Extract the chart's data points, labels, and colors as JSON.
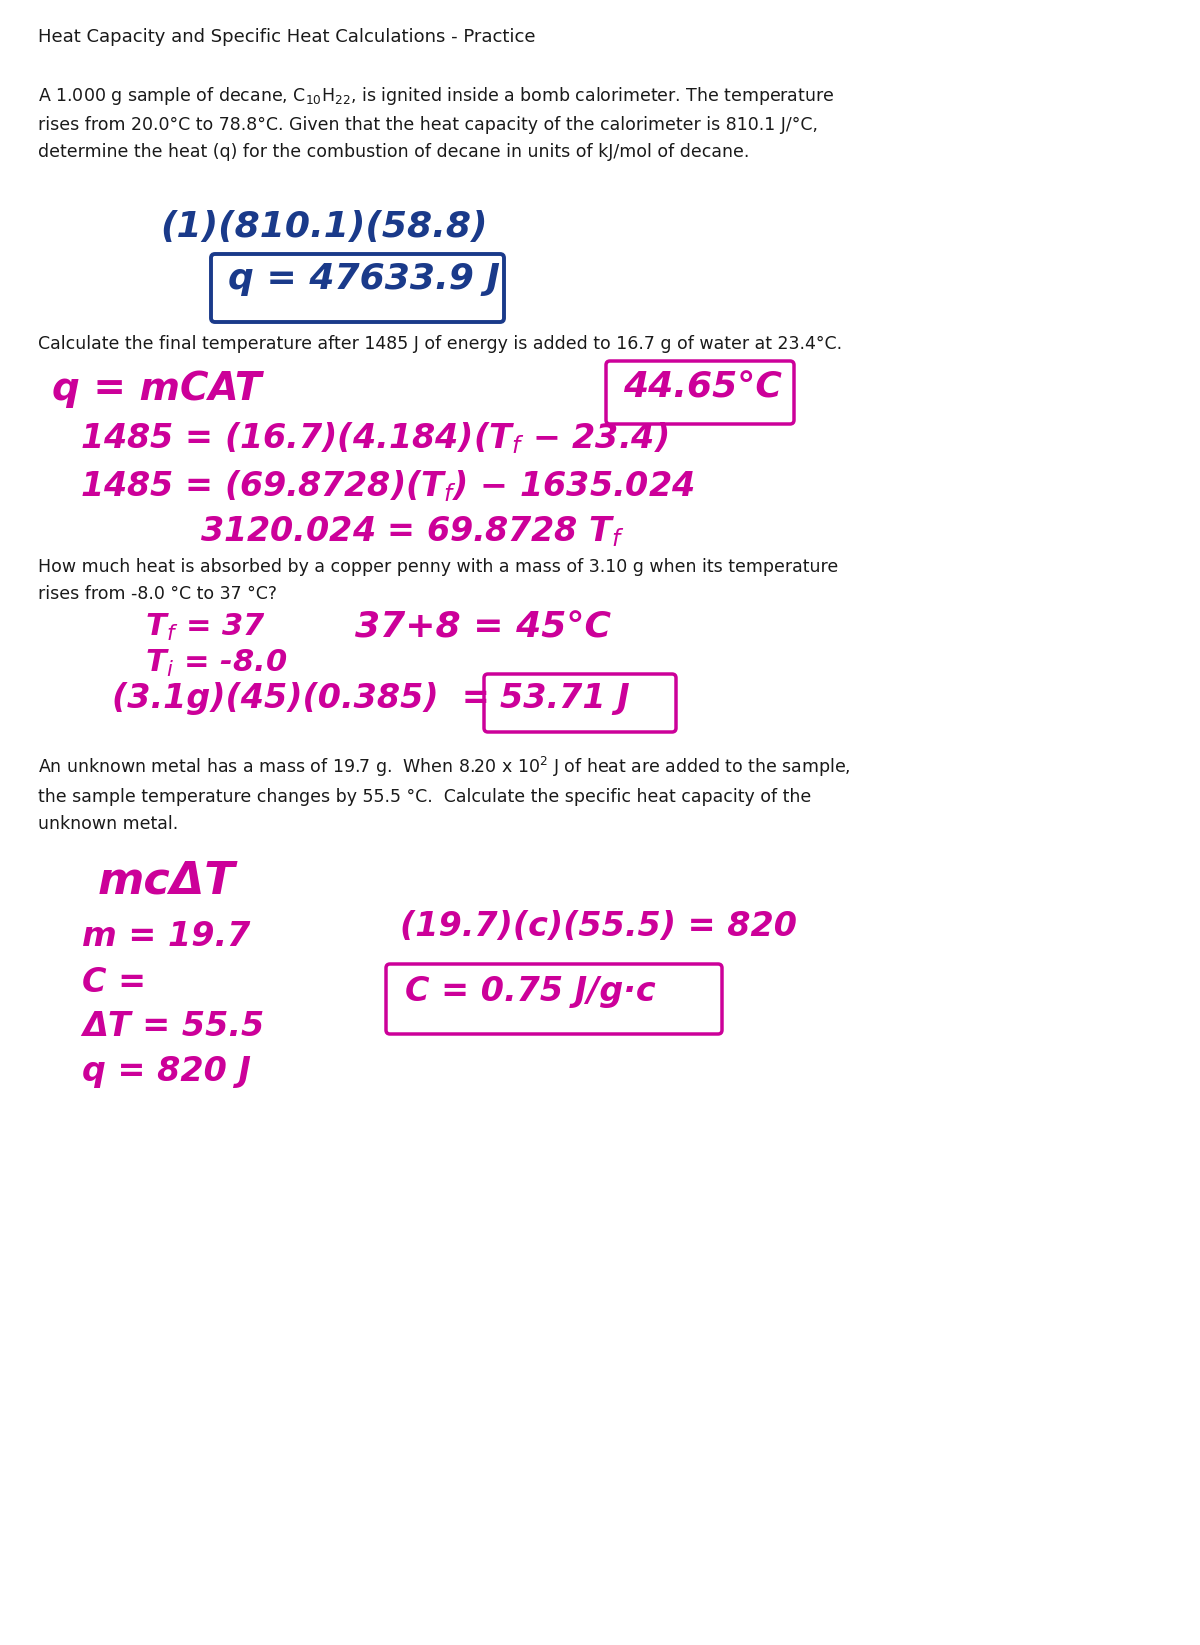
{
  "title": "Heat Capacity and Specific Heat Calculations - Practice",
  "bg_color": "#ffffff",
  "blue_color": "#1a3a8a",
  "magenta_color": "#cc0099",
  "black_color": "#1a1a1a",
  "q1_problem": "A 1.000 g sample of decane, C$_{10}$H$_{22}$, is ignited inside a bomb calorimeter. The temperature\nrises from 20.0°C to 78.8°C. Given that the heat capacity of the calorimeter is 810.1 J/°C,\ndetermine the heat (q) for the combustion of decane in units of kJ/mol of decane.",
  "q1_calc": "(1)(810.1)(58.8)",
  "q1_answer": "q = 47633.9 J",
  "q2_problem": "Calculate the final temperature after 1485 J of energy is added to 16.7 g of water at 23.4°C.",
  "q2_formula": "q = mCAT",
  "q2_line1": "1485 = (16.7)(4.184)(T$_f$ − 23.4)",
  "q2_line2": "1485 = (69.8728)(T$_f$) − 1635.024",
  "q2_line3": "3120.024 = 69.8728 T$_f$",
  "q2_answer": "44.65°C",
  "q3_problem": "How much heat is absorbed by a copper penny with a mass of 3.10 g when its temperature\nrises from -8.0 °C to 37 °C?",
  "q3_tf": "T$_f$ = 37",
  "q3_ti": "T$_i$ = -8.0",
  "q3_tdiff": "37+8 = 45°C",
  "q3_calc": "(3.1g)(45)(0.385)  =",
  "q3_answer": "53.71 J",
  "q4_problem": "An unknown metal has a mass of 19.7 g.  When 8.20 x 10$^2$ J of heat are added to the sample,\nthe sample temperature changes by 55.5 °C.  Calculate the specific heat capacity of the\nunknown metal.",
  "q4_formula": "mcΔT",
  "q4_m": "m = 19.7",
  "q4_c": "C =",
  "q4_dt": "ΔT = 55.5",
  "q4_q": "q = 820 J",
  "q4_calc": "(19.7)(c)(55.5) = 820",
  "q4_answer": "C = 0.75 J/g·c"
}
